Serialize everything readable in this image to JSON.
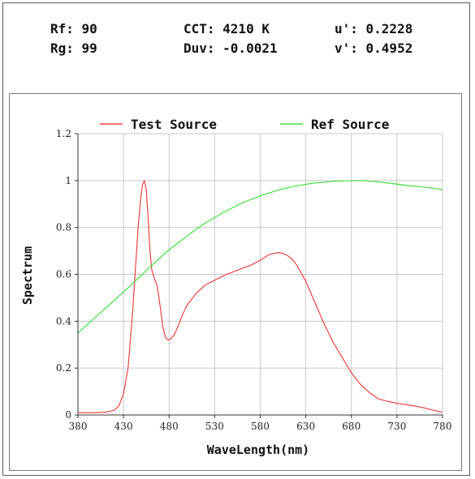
{
  "metrics": {
    "rf": "Rf: 90",
    "rg": "Rg: 99",
    "cct": "CCT: 4210 K",
    "duv": "Duv: -0.0021",
    "u_prime": "u': 0.2228",
    "v_prime": "v': 0.4952"
  },
  "colors": {
    "test": "#ee4444",
    "ref": "#44dd44",
    "grid": "#c8c8c8",
    "axis": "#333333"
  },
  "chart_data": {
    "type": "line",
    "title": "",
    "xlabel": "WaveLength(nm)",
    "ylabel": "Spectrum",
    "xlim": [
      380,
      780
    ],
    "ylim": [
      0,
      1.2
    ],
    "xticks": [
      "380",
      "430",
      "480",
      "530",
      "580",
      "630",
      "680",
      "730",
      "780"
    ],
    "yticks": [
      "0",
      "0.2",
      "0.4",
      "0.6",
      "0.8",
      "1",
      "1.2"
    ],
    "grid": true,
    "legend_position": "top",
    "series": [
      {
        "name": "Test Source",
        "color": "#ee4444",
        "x": [
          380,
          390,
          400,
          410,
          420,
          425,
          430,
          435,
          440,
          443,
          446,
          449,
          451,
          453,
          455,
          457,
          459,
          461,
          464,
          467,
          470,
          473,
          476,
          479,
          482,
          486,
          490,
          495,
          500,
          510,
          520,
          530,
          540,
          550,
          560,
          570,
          580,
          590,
          600,
          605,
          610,
          615,
          620,
          630,
          640,
          650,
          660,
          670,
          680,
          690,
          700,
          710,
          720,
          730,
          740,
          750,
          760,
          770,
          780
        ],
        "y": [
          0.01,
          0.01,
          0.01,
          0.012,
          0.02,
          0.04,
          0.09,
          0.2,
          0.44,
          0.62,
          0.8,
          0.93,
          0.985,
          1.0,
          0.96,
          0.84,
          0.7,
          0.62,
          0.58,
          0.55,
          0.47,
          0.38,
          0.33,
          0.32,
          0.325,
          0.345,
          0.38,
          0.43,
          0.47,
          0.52,
          0.555,
          0.575,
          0.595,
          0.61,
          0.625,
          0.64,
          0.66,
          0.685,
          0.693,
          0.69,
          0.68,
          0.665,
          0.64,
          0.57,
          0.48,
          0.39,
          0.31,
          0.245,
          0.18,
          0.13,
          0.095,
          0.068,
          0.058,
          0.05,
          0.044,
          0.038,
          0.03,
          0.02,
          0.012
        ]
      },
      {
        "name": "Ref Source",
        "color": "#44dd44",
        "x": [
          380,
          400,
          420,
          440,
          460,
          480,
          500,
          520,
          540,
          560,
          580,
          600,
          620,
          640,
          660,
          680,
          690,
          700,
          720,
          740,
          760,
          780
        ],
        "y": [
          0.35,
          0.42,
          0.49,
          0.56,
          0.635,
          0.705,
          0.765,
          0.82,
          0.865,
          0.905,
          0.935,
          0.96,
          0.978,
          0.99,
          0.997,
          1.0,
          1.0,
          0.998,
          0.99,
          0.98,
          0.972,
          0.962
        ]
      }
    ]
  }
}
